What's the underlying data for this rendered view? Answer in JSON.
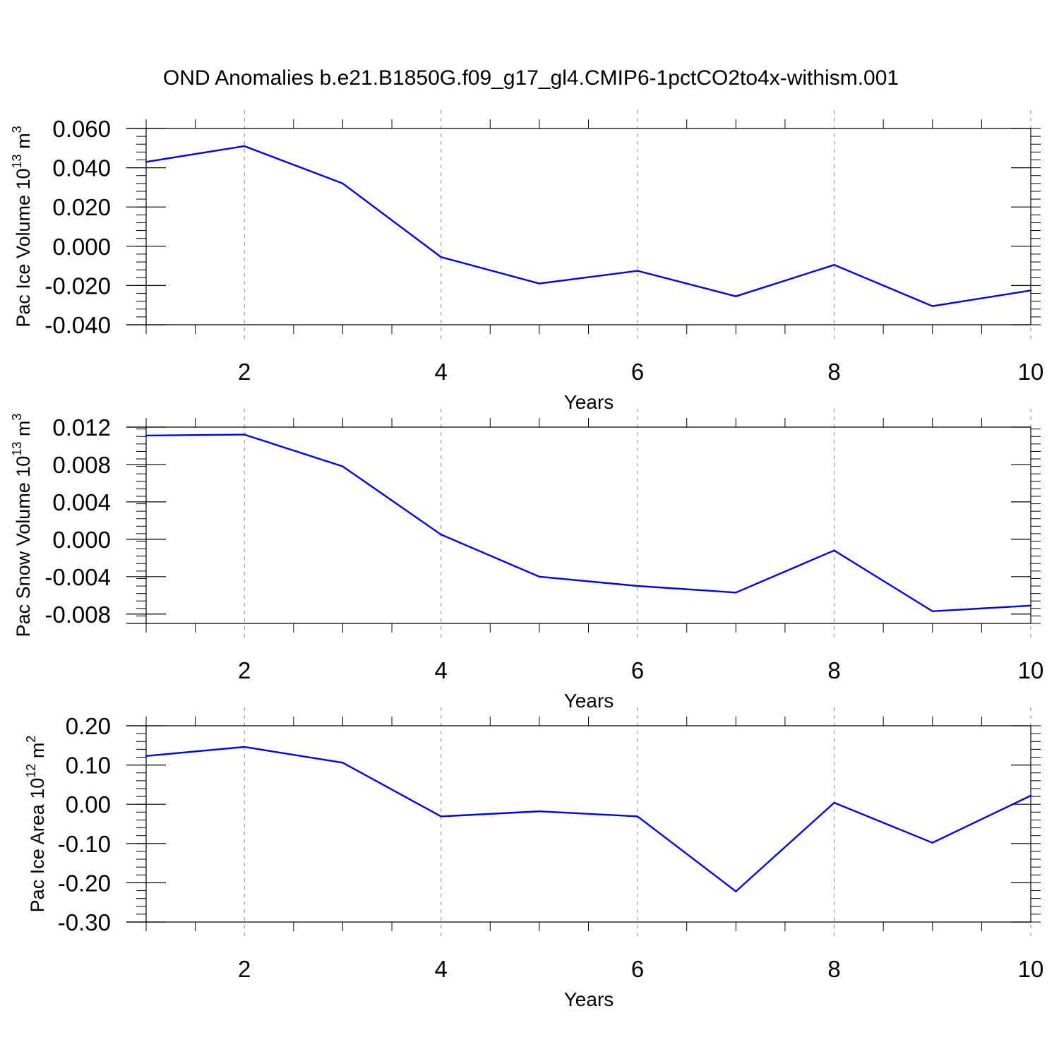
{
  "title": "OND Anomalies b.e21.B1850G.f09_g17_gl4.CMIP6-1pctCO2to4x-withism.001",
  "colors": {
    "series": "#0000ee",
    "axis": "#000000",
    "grid": "#888888"
  },
  "chart_data": [
    {
      "type": "line",
      "xlabel": "Years",
      "ylabel": "Pac Ice Volume 10",
      "ylabel_exp": "13",
      "ylabel_unit": " m",
      "ylabel_unit_exp": "3",
      "xlim": [
        1,
        10
      ],
      "ylim": [
        -0.04,
        0.06
      ],
      "xticks": [
        "2",
        "4",
        "6",
        "8",
        "10"
      ],
      "xtick_values": [
        2,
        4,
        6,
        8,
        10
      ],
      "yticks": [
        "0.060",
        "0.040",
        "0.020",
        "0.000",
        "-0.020",
        "-0.040"
      ],
      "ytick_values": [
        0.06,
        0.04,
        0.02,
        0.0,
        -0.02,
        -0.04
      ],
      "grid": "dashed vertical lines at labeled x ticks",
      "x": [
        1,
        2,
        3,
        4,
        5,
        6,
        7,
        8,
        9,
        10
      ],
      "y": [
        0.043,
        0.051,
        0.032,
        -0.0055,
        -0.019,
        -0.0125,
        -0.0255,
        -0.0095,
        -0.0305,
        -0.0225
      ]
    },
    {
      "type": "line",
      "xlabel": "Years",
      "ylabel": "Pac Snow Volume 10",
      "ylabel_exp": "13",
      "ylabel_unit": " m",
      "ylabel_unit_exp": "3",
      "xlim": [
        1,
        10
      ],
      "ylim": [
        -0.009,
        0.012
      ],
      "xticks": [
        "2",
        "4",
        "6",
        "8",
        "10"
      ],
      "xtick_values": [
        2,
        4,
        6,
        8,
        10
      ],
      "yticks": [
        "0.012",
        "0.008",
        "0.004",
        "0.000",
        "-0.004",
        "-0.008"
      ],
      "ytick_values": [
        0.012,
        0.008,
        0.004,
        0.0,
        -0.004,
        -0.008
      ],
      "grid": "dashed vertical lines at labeled x ticks",
      "x": [
        1,
        2,
        3,
        4,
        5,
        6,
        7,
        8,
        9,
        10
      ],
      "y": [
        0.0111,
        0.0112,
        0.0078,
        0.0005,
        -0.004,
        -0.005,
        -0.0057,
        -0.0012,
        -0.0077,
        -0.0071
      ]
    },
    {
      "type": "line",
      "xlabel": "Years",
      "ylabel": "Pac Ice Area 10",
      "ylabel_exp": "12",
      "ylabel_unit": " m",
      "ylabel_unit_exp": "2",
      "xlim": [
        1,
        10
      ],
      "ylim": [
        -0.3,
        0.2
      ],
      "xticks": [
        "2",
        "4",
        "6",
        "8",
        "10"
      ],
      "xtick_values": [
        2,
        4,
        6,
        8,
        10
      ],
      "yticks": [
        "0.20",
        "0.10",
        "0.00",
        "-0.10",
        "-0.20",
        "-0.30"
      ],
      "ytick_values": [
        0.2,
        0.1,
        0.0,
        -0.1,
        -0.2,
        -0.3
      ],
      "grid": "dashed vertical lines at labeled x ticks",
      "x": [
        1,
        2,
        3,
        4,
        5,
        6,
        7,
        8,
        9,
        10
      ],
      "y": [
        0.123,
        0.146,
        0.106,
        -0.031,
        -0.018,
        -0.031,
        -0.222,
        0.004,
        -0.098,
        0.022
      ]
    }
  ]
}
